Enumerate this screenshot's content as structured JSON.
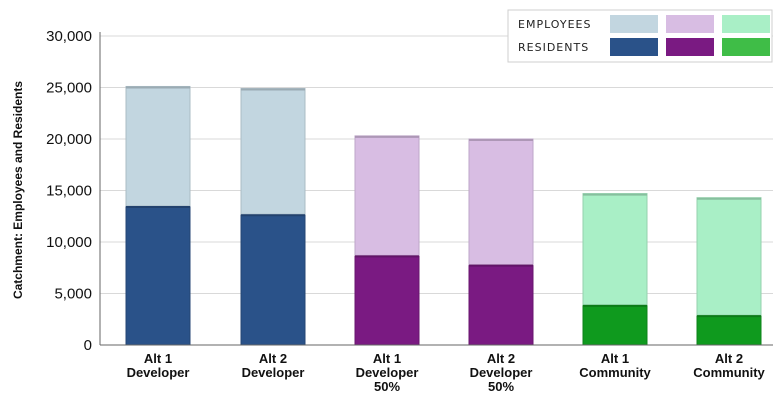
{
  "chart_data": {
    "type": "bar",
    "stacked": true,
    "ylabel": "Catchment: Employees and Residents",
    "ylim": [
      0,
      30000
    ],
    "yticks": [
      0,
      5000,
      10000,
      15000,
      20000,
      25000,
      30000
    ],
    "ytick_labels": [
      "0",
      "5,000",
      "10,000",
      "15,000",
      "20,000",
      "25,000",
      "30,000"
    ],
    "categories": [
      [
        "Alt 1",
        "Developer"
      ],
      [
        "Alt 2",
        "Developer"
      ],
      [
        "Alt 1",
        "Developer",
        "50%"
      ],
      [
        "Alt 2",
        "Developer",
        "50%"
      ],
      [
        "Alt 1",
        "Community"
      ],
      [
        "Alt 2",
        "Community"
      ]
    ],
    "grid": "horizontal",
    "legend_position": "top-right",
    "legend": {
      "rows": [
        "EMPLOYEES",
        "RESIDENTS"
      ],
      "employee_colors": [
        "#c2d6e0",
        "#d8bde3",
        "#a9efc6"
      ],
      "resident_colors": [
        "#2a5289",
        "#7a1a82",
        "#3fbd47"
      ]
    },
    "series": [
      {
        "name": "RESIDENTS",
        "values": [
          13500,
          12700,
          8700,
          7800,
          3900,
          2900
        ]
      },
      {
        "name": "EMPLOYEES",
        "values": [
          11600,
          12200,
          11600,
          12200,
          10800,
          11400
        ]
      }
    ],
    "colors": {
      "residents": [
        "#2a5289",
        "#2a5289",
        "#7a1a82",
        "#7a1a82",
        "#0f9a1e",
        "#0f9a1e"
      ],
      "employees": [
        "#c2d6e0",
        "#c2d6e0",
        "#d8bde3",
        "#d8bde3",
        "#a9efc6",
        "#a9efc6"
      ]
    }
  }
}
